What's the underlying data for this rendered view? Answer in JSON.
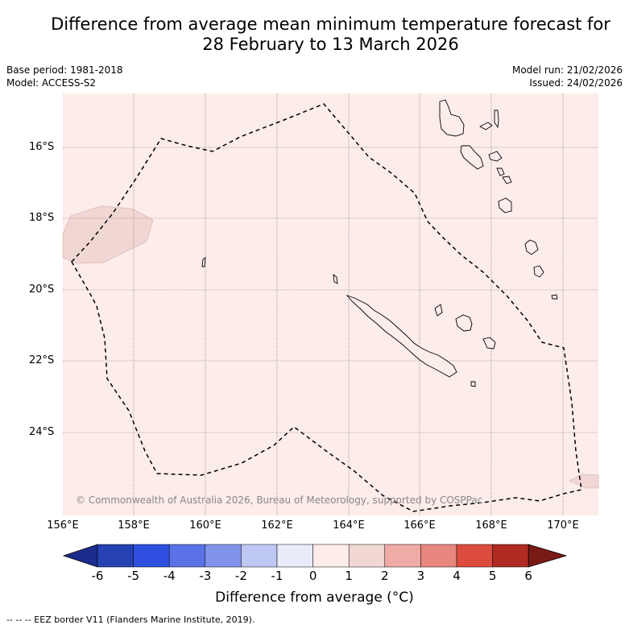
{
  "title_line1": "Difference from average mean minimum temperature forecast for",
  "title_line2": "28 February to 13 March 2026",
  "base_period": "Base period: 1981-2018",
  "model": "Model: ACCESS-S2",
  "model_run": "Model run: 21/02/2026",
  "issued": "Issued: 24/02/2026",
  "lat_labels": [
    "16°S",
    "18°S",
    "20°S",
    "22°S",
    "24°S"
  ],
  "lon_labels": [
    "156°E",
    "158°E",
    "160°E",
    "162°E",
    "164°E",
    "166°E",
    "168°E",
    "170°E"
  ],
  "copyright": "© Commonwealth of Australia 2026, Bureau of Meteorology, supported by COSPPac",
  "colorbar": {
    "title": "Difference from average (°C)",
    "ticks": [
      "-6",
      "-5",
      "-4",
      "-3",
      "-2",
      "-1",
      "0",
      "1",
      "2",
      "3",
      "4",
      "5",
      "6"
    ],
    "colors": [
      "#1c2c8c",
      "#2541b2",
      "#2f4fe0",
      "#5a72e6",
      "#8193ea",
      "#bfc7f3",
      "#e8ecf9",
      "#fdecea",
      "#f1d7d3",
      "#efaba5",
      "#e8877f",
      "#dc4c3e",
      "#ae2a22",
      "#7a1a16"
    ]
  },
  "eez_legend": "--  --  -- EEZ border V11 (Flanders Marine Institute, 2019).",
  "map_background_color": "#fcecea",
  "anomaly_patch_color": "#f1d7d3"
}
